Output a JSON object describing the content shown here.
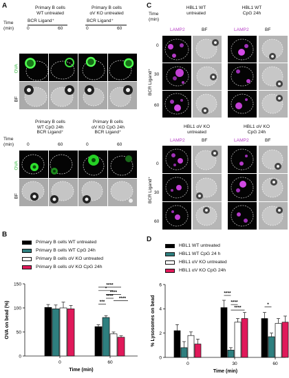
{
  "panelA": {
    "letter": "A",
    "groups": [
      {
        "title_line1": "Primary B cells",
        "title_line2": "WT untreated",
        "ligand": "BCR Ligand⁺"
      },
      {
        "title_line1": "Primary B cells",
        "title_line2": "αV KO untreated",
        "ligand": "BCR Ligand⁺"
      },
      {
        "title_line1": "Primary B cells",
        "title_line2": "WT CpG 24h",
        "ligand": "BCR Ligand⁺"
      },
      {
        "title_line1": "Primary B cells",
        "title_line2": "αV KO CpG 24h",
        "ligand": "BCR Ligand⁺"
      }
    ],
    "time_label": "Time",
    "time_unit": "(min)",
    "t0": "0",
    "t60": "60",
    "row_ova": "OVA",
    "row_bf": "BF"
  },
  "panelB": {
    "letter": "B",
    "legend": [
      {
        "label": "Primary B cells WT untreated",
        "color": "#000000"
      },
      {
        "label": "Primary B cells WT CpG 24h",
        "color": "#2e7f7f"
      },
      {
        "label": "Primary B cells αV KO untreated",
        "color": "#ffffff"
      },
      {
        "label": "Primary B cells αV KO CpG 24h",
        "color": "#e0195a"
      }
    ],
    "significance": [
      "****",
      "*",
      "****",
      "****",
      "****",
      "***"
    ]
  },
  "panelC": {
    "letter": "C",
    "top_groups": [
      {
        "line1": "HBL1 WT",
        "line2": "untreated"
      },
      {
        "line1": "HBL1 WT",
        "line2": "CpG 24h"
      }
    ],
    "bottom_groups": [
      {
        "line1": "HBL1 αV KO",
        "line2": "untreated"
      },
      {
        "line1": "HBL1 αV KO",
        "line2": "CpG 24h"
      }
    ],
    "ch_lamp2": "LAMP2",
    "ch_bf": "BF",
    "time_label": "Time",
    "time_unit": "(min)",
    "times": [
      "0",
      "30",
      "60"
    ],
    "side_label": "BCR Ligand⁺"
  },
  "panelD": {
    "letter": "D",
    "legend": [
      {
        "label": "HBL1 WT untreated",
        "color": "#000000"
      },
      {
        "label": "HBL1 WT CpG 24 h",
        "color": "#2e7f7f"
      },
      {
        "label": "HBL1 αV KO untreated",
        "color": "#ffffff"
      },
      {
        "label": "HBL1 αV KO CpG 24h",
        "color": "#e0195a"
      }
    ],
    "significance": [
      "****",
      "****",
      "****",
      "*"
    ]
  },
  "chart_data": [
    {
      "type": "bar",
      "ylabel": "OVA on bead (%)",
      "xlabel": "Time (min)",
      "categories": [
        "0",
        "60"
      ],
      "ylim": [
        0,
        150
      ],
      "yticks": [
        0,
        50,
        100,
        150
      ],
      "series": [
        {
          "name": "Primary B cells WT untreated",
          "color": "#000000",
          "values": [
            101,
            61
          ],
          "errors": [
            6,
            4
          ]
        },
        {
          "name": "Primary B cells WT CpG 24h",
          "color": "#2e7f7f",
          "values": [
            98,
            80
          ],
          "errors": [
            8,
            4
          ]
        },
        {
          "name": "Primary B cells αV KO untreated",
          "color": "#ffffff",
          "values": [
            100,
            46
          ],
          "errors": [
            12,
            4
          ]
        },
        {
          "name": "Primary B cells αV KO CpG 24h",
          "color": "#e0195a",
          "values": [
            98,
            39
          ],
          "errors": [
            7,
            3
          ]
        }
      ]
    },
    {
      "type": "bar",
      "ylabel": "% Lysosomes on bead",
      "xlabel": "Time (min)",
      "categories": [
        "0",
        "30",
        "60"
      ],
      "ylim": [
        0,
        6
      ],
      "yticks": [
        0,
        2,
        4,
        6
      ],
      "series": [
        {
          "name": "HBL1 WT untreated",
          "color": "#000000",
          "values": [
            2.2,
            4.1,
            3.2
          ],
          "errors": [
            0.5,
            0.6,
            0.5
          ]
        },
        {
          "name": "HBL1 WT CpG 24 h",
          "color": "#2e7f7f",
          "values": [
            0.8,
            0.6,
            1.7
          ],
          "errors": [
            0.5,
            0.2,
            0.3
          ]
        },
        {
          "name": "HBL1 αV KO untreated",
          "color": "#ffffff",
          "values": [
            1.8,
            2.9,
            2.8
          ],
          "errors": [
            0.3,
            0.3,
            0.4
          ]
        },
        {
          "name": "HBL1 αV KO CpG 24h",
          "color": "#e0195a",
          "values": [
            1.1,
            3.2,
            2.9
          ],
          "errors": [
            0.4,
            0.5,
            0.5
          ]
        }
      ]
    }
  ]
}
